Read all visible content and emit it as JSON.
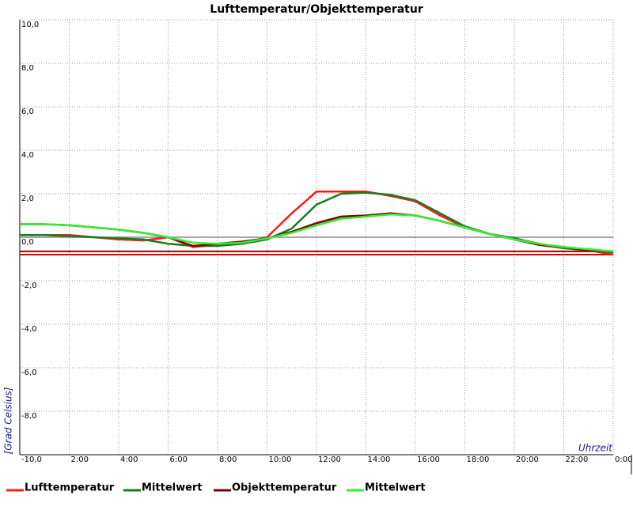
{
  "chart_data": {
    "type": "line",
    "title": "Lufttemperatur/Objekttemperatur",
    "y_label": "[Grad Celsius]",
    "x_label": "Uhrzeit",
    "x": [
      0,
      1,
      2,
      3,
      4,
      5,
      6,
      7,
      8,
      9,
      10,
      11,
      12,
      13,
      14,
      15,
      16,
      17,
      18,
      19,
      20,
      21,
      22,
      23,
      24
    ],
    "series": [
      {
        "name": "Lufttemperatur",
        "color": "#ff1a1a",
        "values": [
          0.1,
          0.1,
          0.1,
          0.0,
          -0.1,
          -0.15,
          0.0,
          -0.45,
          -0.35,
          -0.3,
          0.0,
          1.1,
          2.1,
          2.1,
          2.1,
          1.9,
          1.65,
          1.0,
          0.45,
          0.15,
          -0.05,
          -0.35,
          -0.5,
          -0.6,
          -0.8
        ]
      },
      {
        "name": "Mittelwert",
        "color": "#1e7a1e",
        "values": [
          0.1,
          0.1,
          0.05,
          0.0,
          -0.05,
          -0.1,
          -0.3,
          -0.4,
          -0.4,
          -0.3,
          -0.1,
          0.4,
          1.5,
          2.0,
          2.05,
          1.95,
          1.7,
          1.1,
          0.5,
          0.15,
          -0.05,
          -0.3,
          -0.5,
          -0.6,
          -0.7
        ]
      },
      {
        "name": "Objekttemperatur",
        "color": "#800000",
        "values": [
          0.6,
          0.6,
          0.55,
          0.45,
          0.35,
          0.2,
          0.0,
          -0.4,
          -0.3,
          -0.2,
          -0.05,
          0.25,
          0.65,
          0.95,
          1.0,
          1.1,
          1.0,
          0.75,
          0.45,
          0.15,
          -0.1,
          -0.35,
          -0.45,
          -0.6,
          -0.65
        ]
      },
      {
        "name": "Mittelwert",
        "color": "#33ee33",
        "values": [
          0.6,
          0.6,
          0.55,
          0.45,
          0.35,
          0.2,
          0.0,
          -0.25,
          -0.3,
          -0.25,
          -0.05,
          0.2,
          0.55,
          0.85,
          0.95,
          1.05,
          1.0,
          0.75,
          0.45,
          0.15,
          -0.1,
          -0.3,
          -0.45,
          -0.55,
          -0.65
        ]
      }
    ],
    "reference_lines": [
      {
        "value": -0.65,
        "color": "#990000"
      },
      {
        "value": -0.8,
        "color": "#dd0000"
      }
    ],
    "xlim": [
      0,
      24
    ],
    "xticks": [
      {
        "value": 2,
        "label": "2:00"
      },
      {
        "value": 4,
        "label": "4:00"
      },
      {
        "value": 6,
        "label": "6:00"
      },
      {
        "value": 8,
        "label": "8:00"
      },
      {
        "value": 10,
        "label": "10:00"
      },
      {
        "value": 12,
        "label": "12:00"
      },
      {
        "value": 14,
        "label": "14:00"
      },
      {
        "value": 16,
        "label": "16:00"
      },
      {
        "value": 18,
        "label": "18:00"
      },
      {
        "value": 20,
        "label": "20:00"
      },
      {
        "value": 22,
        "label": "22:00"
      },
      {
        "value": 24,
        "label": "0:00"
      }
    ],
    "ylim": [
      -10,
      10
    ],
    "yticks": [
      {
        "value": 10,
        "label": "10,0"
      },
      {
        "value": 8,
        "label": "8,0"
      },
      {
        "value": 6,
        "label": "6,0"
      },
      {
        "value": 4,
        "label": "4,0"
      },
      {
        "value": 2,
        "label": "2,0"
      },
      {
        "value": 0,
        "label": "0,0"
      },
      {
        "value": -2,
        "label": "-2,0"
      },
      {
        "value": -4,
        "label": "-4,0"
      },
      {
        "value": -6,
        "label": "-6,0"
      },
      {
        "value": -8,
        "label": "-8,0"
      },
      {
        "value": -10,
        "label": "-10,0"
      }
    ],
    "grid": true
  }
}
